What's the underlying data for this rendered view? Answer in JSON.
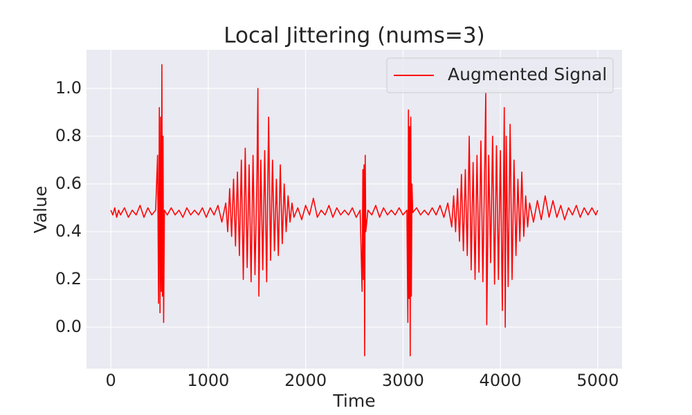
{
  "chart_data": {
    "type": "line",
    "title": "Local Jittering (nums=3)",
    "xlabel": "Time",
    "ylabel": "Value",
    "x": [
      0,
      20,
      40,
      60,
      80,
      100,
      140,
      180,
      220,
      260,
      300,
      340,
      380,
      420,
      460,
      480,
      490,
      498,
      505,
      512,
      518,
      524,
      530,
      536,
      542,
      550,
      580,
      620,
      660,
      700,
      740,
      780,
      820,
      860,
      900,
      940,
      980,
      1020,
      1060,
      1100,
      1140,
      1180,
      1200,
      1220,
      1240,
      1260,
      1280,
      1300,
      1320,
      1340,
      1360,
      1380,
      1400,
      1420,
      1440,
      1460,
      1480,
      1500,
      1510,
      1520,
      1540,
      1560,
      1580,
      1600,
      1620,
      1640,
      1660,
      1680,
      1700,
      1720,
      1740,
      1760,
      1780,
      1800,
      1820,
      1840,
      1860,
      1880,
      1920,
      1960,
      2000,
      2040,
      2080,
      2120,
      2160,
      2200,
      2240,
      2280,
      2320,
      2360,
      2400,
      2440,
      2480,
      2520,
      2560,
      2580,
      2588,
      2594,
      2600,
      2606,
      2612,
      2618,
      2640,
      2680,
      2720,
      2760,
      2800,
      2840,
      2880,
      2920,
      2960,
      3000,
      3040,
      3050,
      3056,
      3062,
      3068,
      3074,
      3080,
      3086,
      3092,
      3100,
      3140,
      3180,
      3220,
      3260,
      3300,
      3340,
      3380,
      3420,
      3460,
      3500,
      3520,
      3540,
      3560,
      3580,
      3600,
      3620,
      3640,
      3660,
      3680,
      3700,
      3720,
      3740,
      3760,
      3780,
      3800,
      3820,
      3840,
      3850,
      3860,
      3880,
      3900,
      3920,
      3940,
      3960,
      3980,
      4000,
      4020,
      4040,
      4050,
      4060,
      4080,
      4100,
      4120,
      4140,
      4160,
      4180,
      4200,
      4220,
      4240,
      4260,
      4280,
      4300,
      4340,
      4380,
      4420,
      4460,
      4500,
      4540,
      4580,
      4620,
      4660,
      4700,
      4740,
      4780,
      4820,
      4860,
      4900,
      4940,
      4980,
      5000
    ],
    "series": [
      {
        "name": "Augmented Signal",
        "color": "#ff0000",
        "values": [
          0.49,
          0.47,
          0.5,
          0.46,
          0.49,
          0.47,
          0.5,
          0.46,
          0.49,
          0.47,
          0.51,
          0.46,
          0.5,
          0.47,
          0.49,
          0.72,
          0.1,
          0.92,
          0.06,
          0.88,
          0.15,
          1.1,
          0.13,
          0.8,
          0.02,
          0.49,
          0.47,
          0.5,
          0.47,
          0.49,
          0.46,
          0.5,
          0.47,
          0.49,
          0.47,
          0.5,
          0.46,
          0.5,
          0.47,
          0.51,
          0.44,
          0.52,
          0.4,
          0.58,
          0.38,
          0.62,
          0.34,
          0.65,
          0.3,
          0.7,
          0.2,
          0.75,
          0.25,
          0.68,
          0.19,
          0.72,
          0.22,
          0.62,
          1.0,
          0.13,
          0.7,
          0.24,
          0.74,
          0.19,
          0.88,
          0.28,
          0.7,
          0.32,
          0.62,
          0.3,
          0.68,
          0.35,
          0.6,
          0.4,
          0.55,
          0.44,
          0.52,
          0.46,
          0.5,
          0.45,
          0.51,
          0.47,
          0.54,
          0.46,
          0.49,
          0.47,
          0.51,
          0.46,
          0.5,
          0.47,
          0.49,
          0.47,
          0.5,
          0.46,
          0.49,
          0.15,
          0.66,
          0.2,
          0.68,
          -0.12,
          0.72,
          0.4,
          0.49,
          0.47,
          0.51,
          0.46,
          0.5,
          0.47,
          0.49,
          0.47,
          0.5,
          0.47,
          0.49,
          0.02,
          0.91,
          0.12,
          0.84,
          -0.12,
          0.88,
          0.13,
          0.6,
          0.48,
          0.5,
          0.47,
          0.49,
          0.47,
          0.5,
          0.47,
          0.51,
          0.46,
          0.52,
          0.42,
          0.55,
          0.4,
          0.58,
          0.36,
          0.64,
          0.32,
          0.66,
          0.3,
          0.8,
          0.24,
          0.69,
          0.2,
          0.72,
          0.23,
          0.78,
          0.19,
          0.7,
          0.98,
          0.01,
          0.72,
          0.27,
          0.8,
          0.18,
          0.76,
          0.2,
          0.74,
          0.07,
          0.92,
          0.0,
          0.8,
          0.17,
          0.85,
          0.2,
          0.7,
          0.3,
          0.62,
          0.36,
          0.65,
          0.38,
          0.55,
          0.42,
          0.52,
          0.44,
          0.53,
          0.45,
          0.55,
          0.46,
          0.53,
          0.46,
          0.51,
          0.45,
          0.5,
          0.47,
          0.51,
          0.46,
          0.5,
          0.47,
          0.5,
          0.47,
          0.49
        ]
      }
    ],
    "xlim": [
      -250,
      5250
    ],
    "ylim": [
      -0.174,
      1.162
    ],
    "xticks": [
      0,
      1000,
      2000,
      3000,
      4000,
      5000
    ],
    "yticks": [
      {
        "value": 0,
        "label": "0.0"
      },
      0.2,
      0.4,
      0.6,
      0.8,
      {
        "value": 1,
        "label": "1.0"
      }
    ],
    "grid": true,
    "legend": "upper right"
  }
}
